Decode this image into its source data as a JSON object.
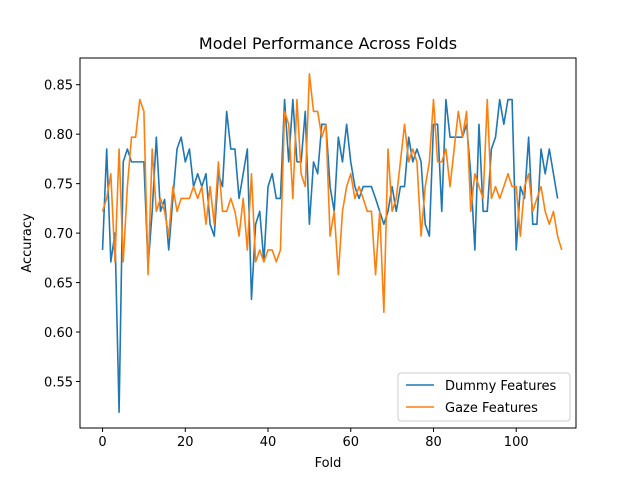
{
  "chart_data": {
    "type": "line",
    "title": "Model Performance Across Folds",
    "xlabel": "Fold",
    "ylabel": "Accuracy",
    "xlim": [
      -5.45,
      114.45
    ],
    "ylim": [
      0.503,
      0.877
    ],
    "xticks": [
      0,
      20,
      40,
      60,
      80,
      100
    ],
    "yticks": [
      0.55,
      0.6,
      0.65,
      0.7,
      0.75,
      0.8,
      0.85
    ],
    "grid": false,
    "legend_position": "lower-right",
    "series": [
      {
        "name": "Dummy Features",
        "color": "#1f77b4",
        "values": [
          0.683,
          0.785,
          0.671,
          0.7,
          0.519,
          0.772,
          0.785,
          0.772,
          0.772,
          0.772,
          0.772,
          0.666,
          0.722,
          0.797,
          0.722,
          0.734,
          0.683,
          0.735,
          0.785,
          0.797,
          0.772,
          0.785,
          0.747,
          0.76,
          0.747,
          0.76,
          0.709,
          0.697,
          0.76,
          0.747,
          0.823,
          0.785,
          0.785,
          0.735,
          0.76,
          0.785,
          0.633,
          0.709,
          0.722,
          0.671,
          0.747,
          0.76,
          0.735,
          0.735,
          0.835,
          0.772,
          0.835,
          0.772,
          0.772,
          0.823,
          0.709,
          0.772,
          0.76,
          0.81,
          0.81,
          0.747,
          0.722,
          0.797,
          0.772,
          0.81,
          0.772,
          0.747,
          0.735,
          0.747,
          0.747,
          0.747,
          0.735,
          0.722,
          0.709,
          0.722,
          0.747,
          0.722,
          0.747,
          0.747,
          0.797,
          0.772,
          0.785,
          0.772,
          0.709,
          0.697,
          0.81,
          0.81,
          0.722,
          0.835,
          0.797,
          0.797,
          0.797,
          0.797,
          0.81,
          0.76,
          0.683,
          0.81,
          0.722,
          0.722,
          0.785,
          0.797,
          0.835,
          0.81,
          0.835,
          0.835,
          0.683,
          0.747,
          0.735,
          0.797,
          0.709,
          0.709,
          0.785,
          0.76,
          0.785,
          0.76,
          0.735
        ]
      },
      {
        "name": "Gaze Features",
        "color": "#ff7f0e",
        "values": [
          0.722,
          0.735,
          0.76,
          0.671,
          0.785,
          0.671,
          0.747,
          0.797,
          0.797,
          0.835,
          0.823,
          0.658,
          0.785,
          0.722,
          0.735,
          0.722,
          0.697,
          0.747,
          0.722,
          0.735,
          0.735,
          0.735,
          0.747,
          0.735,
          0.747,
          0.709,
          0.747,
          0.709,
          0.772,
          0.722,
          0.722,
          0.735,
          0.722,
          0.697,
          0.735,
          0.683,
          0.76,
          0.671,
          0.683,
          0.671,
          0.683,
          0.683,
          0.671,
          0.683,
          0.823,
          0.81,
          0.735,
          0.835,
          0.76,
          0.747,
          0.861,
          0.823,
          0.823,
          0.797,
          0.81,
          0.697,
          0.722,
          0.658,
          0.722,
          0.747,
          0.76,
          0.735,
          0.747,
          0.735,
          0.722,
          0.722,
          0.658,
          0.722,
          0.62,
          0.785,
          0.722,
          0.735,
          0.772,
          0.81,
          0.772,
          0.785,
          0.772,
          0.697,
          0.747,
          0.772,
          0.835,
          0.772,
          0.772,
          0.785,
          0.747,
          0.785,
          0.823,
          0.797,
          0.823,
          0.722,
          0.76,
          0.747,
          0.735,
          0.835,
          0.735,
          0.747,
          0.735,
          0.747,
          0.76,
          0.747,
          0.747,
          0.697,
          0.747,
          0.76,
          0.722,
          0.735,
          0.747,
          0.722,
          0.709,
          0.722,
          0.697,
          0.683
        ]
      }
    ]
  }
}
